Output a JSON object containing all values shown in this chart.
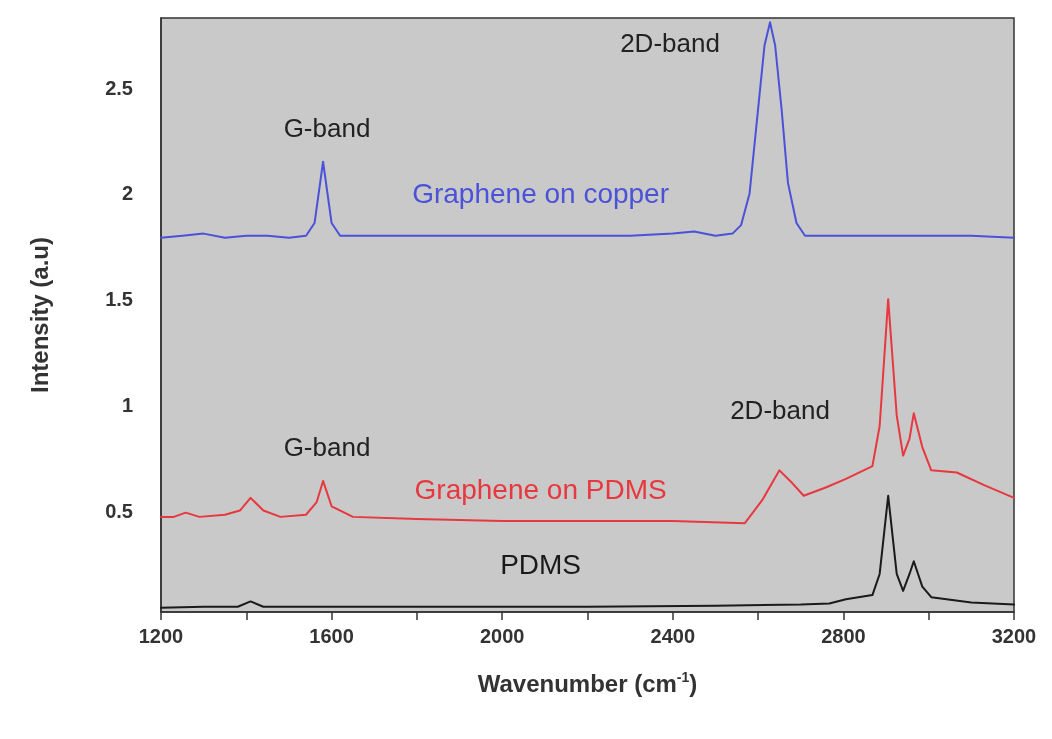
{
  "chart_data": {
    "type": "line",
    "xlabel": "Wavenumber (cm$^{-1}$)",
    "ylabel": "Intensity (a.u)",
    "xlim": [
      1200,
      3200
    ],
    "ylim": [
      0.02,
      2.83
    ],
    "xticks": [
      1200,
      {
        "value": 1400,
        "label": null
      },
      1600,
      {
        "value": 1800,
        "label": null
      },
      2000,
      {
        "value": 2200,
        "label": null
      },
      2400,
      {
        "value": 2600,
        "label": null
      },
      2800,
      {
        "value": 3000,
        "label": null
      },
      3200
    ],
    "yticks": [
      0.5,
      1.0,
      1.5,
      2.0,
      2.5
    ],
    "grid": false,
    "legend": false,
    "marker": "none",
    "line_style": "solid",
    "annotations": [
      "G-band",
      "2D-band",
      "G-band",
      "2D-band"
    ],
    "series": [
      {
        "name": "Graphene on copper",
        "color": "#4a52d8",
        "x": [
          1200,
          1250,
          1300,
          1350,
          1400,
          1450,
          1500,
          1540,
          1560,
          1580,
          1600,
          1620,
          1700,
          1800,
          1900,
          2000,
          2100,
          2200,
          2300,
          2400,
          2450,
          2500,
          2540,
          2560,
          2580,
          2600,
          2615,
          2628,
          2640,
          2655,
          2670,
          2690,
          2710,
          2800,
          2900,
          3000,
          3100,
          3200
        ],
        "values": [
          1.79,
          1.8,
          1.81,
          1.79,
          1.8,
          1.8,
          1.79,
          1.8,
          1.86,
          2.15,
          1.86,
          1.8,
          1.8,
          1.8,
          1.8,
          1.8,
          1.8,
          1.8,
          1.8,
          1.81,
          1.82,
          1.8,
          1.81,
          1.85,
          2.0,
          2.4,
          2.7,
          2.81,
          2.7,
          2.4,
          2.05,
          1.86,
          1.8,
          1.8,
          1.8,
          1.8,
          1.8,
          1.79
        ]
      },
      {
        "name": "Graphene on PDMS",
        "color": "#e8383f",
        "x": [
          1200,
          1230,
          1258,
          1290,
          1350,
          1385,
          1410,
          1440,
          1480,
          1540,
          1565,
          1580,
          1600,
          1650,
          1800,
          2000,
          2200,
          2400,
          2569,
          2610,
          2650,
          2680,
          2707,
          2760,
          2806,
          2868,
          2885,
          2905,
          2925,
          2940,
          2955,
          2965,
          2985,
          3006,
          3066,
          3130,
          3200
        ],
        "values": [
          0.47,
          0.47,
          0.49,
          0.47,
          0.48,
          0.5,
          0.56,
          0.5,
          0.47,
          0.48,
          0.54,
          0.64,
          0.52,
          0.47,
          0.46,
          0.45,
          0.45,
          0.45,
          0.44,
          0.55,
          0.69,
          0.63,
          0.57,
          0.61,
          0.65,
          0.71,
          0.9,
          1.5,
          0.95,
          0.76,
          0.84,
          0.96,
          0.8,
          0.69,
          0.68,
          0.62,
          0.56
        ]
      },
      {
        "name": "PDMS",
        "color": "#1a1a1a",
        "x": [
          1200,
          1300,
          1380,
          1410,
          1440,
          1500,
          1800,
          2200,
          2500,
          2700,
          2767,
          2806,
          2868,
          2885,
          2905,
          2925,
          2940,
          2955,
          2965,
          2985,
          3006,
          3100,
          3200
        ],
        "values": [
          0.04,
          0.045,
          0.045,
          0.07,
          0.045,
          0.045,
          0.045,
          0.045,
          0.05,
          0.055,
          0.06,
          0.08,
          0.1,
          0.2,
          0.57,
          0.2,
          0.12,
          0.2,
          0.26,
          0.14,
          0.09,
          0.065,
          0.055
        ]
      }
    ]
  }
}
